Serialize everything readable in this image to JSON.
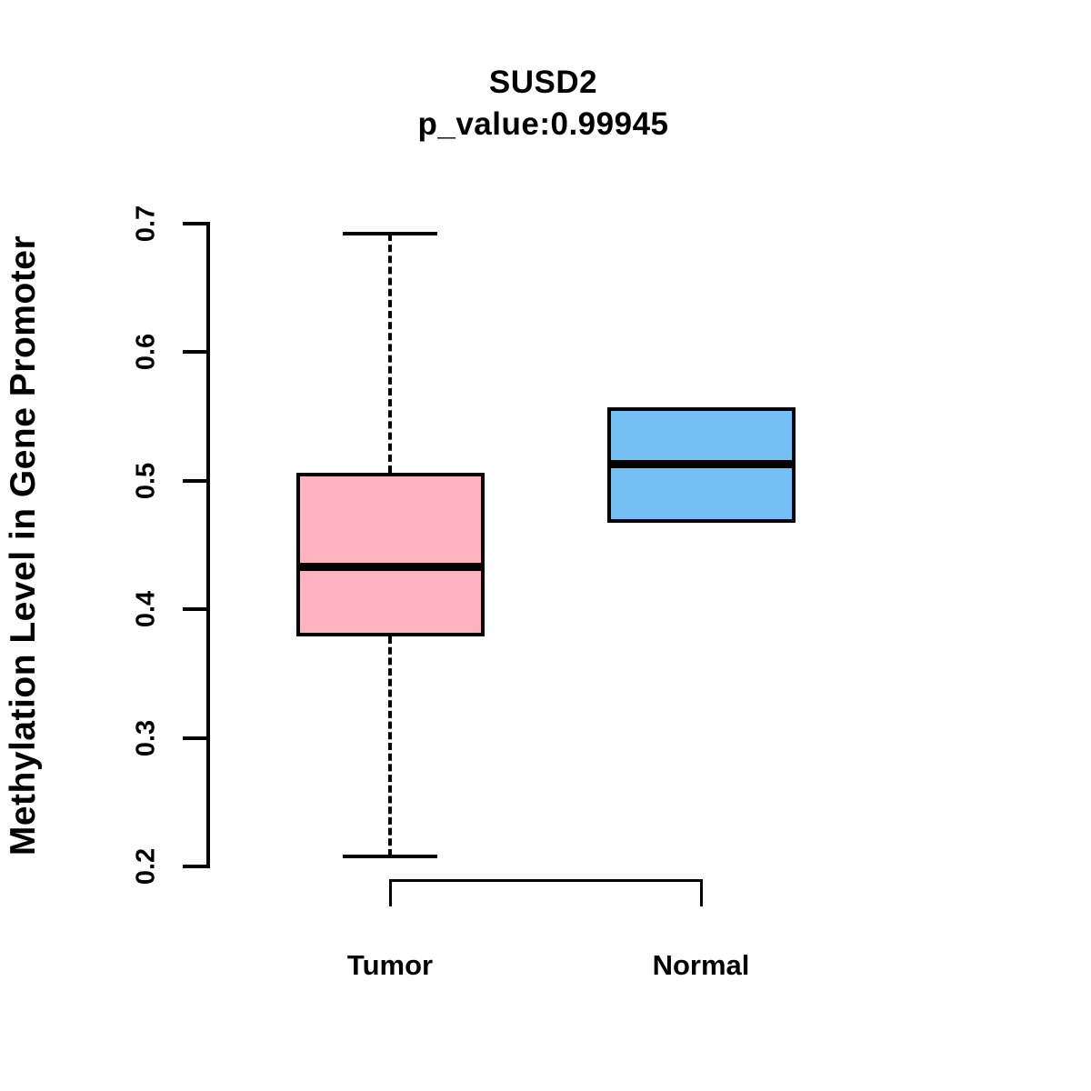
{
  "chart_data": {
    "type": "boxplot",
    "title": "SUSD2",
    "subtitle": "p_value:0.99945",
    "p_value": "0.99945",
    "ylabel": "Methylation Level in Gene Promoter",
    "xlabel": "",
    "ylim": [
      0.2,
      0.7
    ],
    "yticks": [
      "0.2",
      "0.3",
      "0.4",
      "0.5",
      "0.6",
      "0.7"
    ],
    "grid": false,
    "legend": "none",
    "categories": [
      "Tumor",
      "Normal"
    ],
    "series": [
      {
        "name": "Tumor",
        "color": "#FFB3C1",
        "border_color": "#000000",
        "whisker_low": 0.208,
        "q1": 0.379,
        "median": 0.433,
        "q3": 0.506,
        "whisker_high": 0.692
      },
      {
        "name": "Normal",
        "color": "#74BFF4",
        "border_color": "#000000",
        "whisker_low": 0.467,
        "q1": 0.467,
        "median": 0.513,
        "q3": 0.557,
        "whisker_high": 0.557
      }
    ]
  }
}
